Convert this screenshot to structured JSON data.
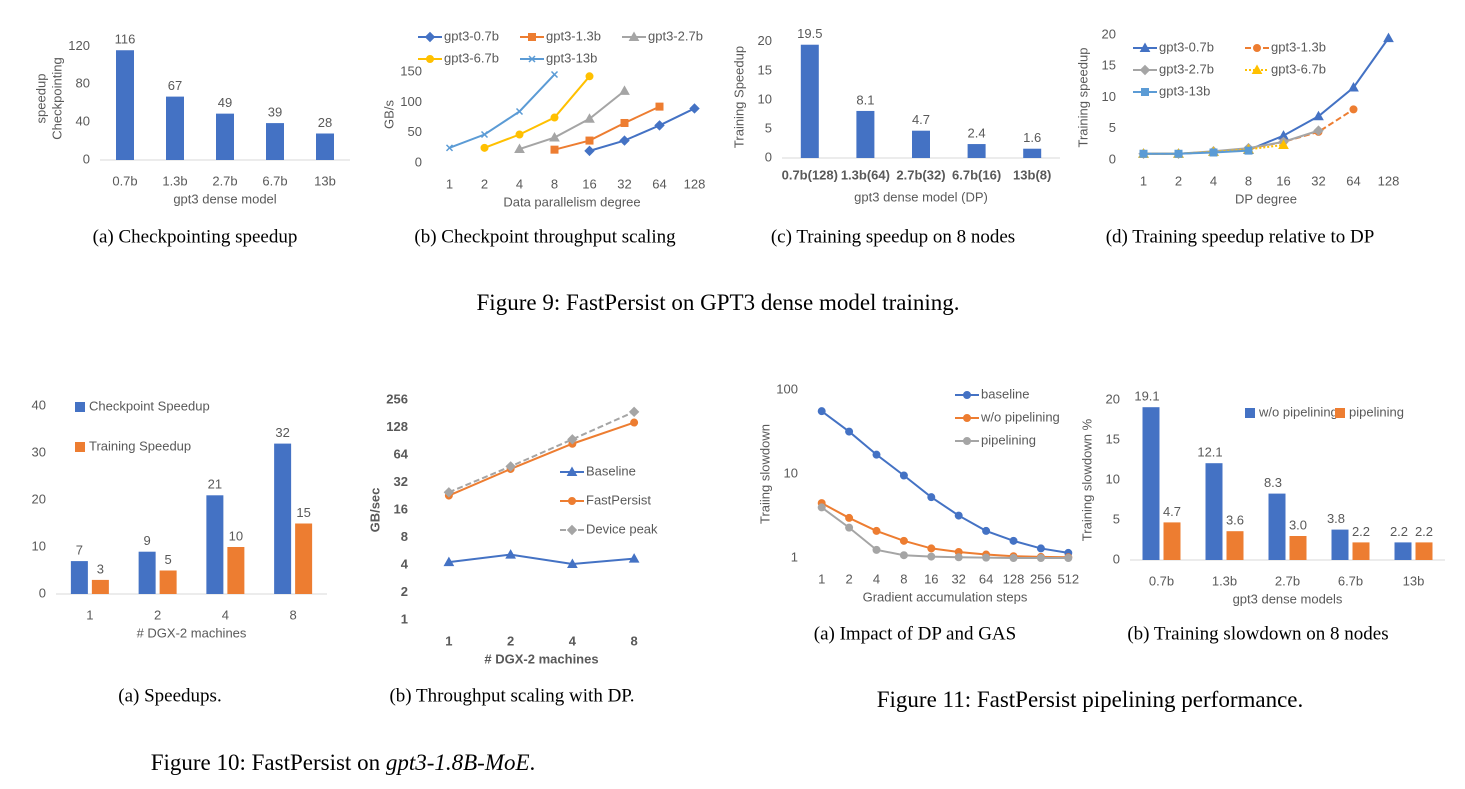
{
  "figures": [
    {
      "caption": [
        "Figure 9: FastPersist on GPT3 dense model training."
      ]
    },
    {
      "caption": [
        "Figure 10: FastPersist on ",
        "gpt3-1.8B-MoE",
        "."
      ]
    },
    {
      "caption": [
        "Figure 11: FastPersist pipelining performance."
      ]
    }
  ],
  "chart_data": [
    {
      "type": "bar",
      "caption": "(a)  Checkpointing speedup",
      "ylabel": [
        "Checkpointing",
        "speedup"
      ],
      "xlabel": "gpt3 dense model",
      "categories": [
        "0.7b",
        "1.3b",
        "2.7b",
        "6.7b",
        "13b"
      ],
      "series": [
        {
          "name": null,
          "color": "#4472c4",
          "values": [
            116,
            67,
            49,
            39,
            28
          ]
        }
      ],
      "ylim": [
        0,
        130
      ],
      "yticks": [
        0,
        40,
        80,
        120
      ],
      "grid": false
    },
    {
      "type": "line",
      "caption": "(b)  Checkpoint throughput scaling",
      "ylabel": "GB/s",
      "xlabel": "Data parallelism degree",
      "categories": [
        "1",
        "2",
        "4",
        "8",
        "16",
        "32",
        "64",
        "128"
      ],
      "legend": "top",
      "series": [
        {
          "name": "gpt3-0.7b",
          "color": "#4472c4",
          "marker": "diamond",
          "values": [
            null,
            null,
            null,
            null,
            20,
            37,
            62,
            90
          ]
        },
        {
          "name": "gpt3-1.3b",
          "color": "#ed7d31",
          "marker": "square",
          "values": [
            null,
            null,
            null,
            22,
            37,
            66,
            93,
            null
          ]
        },
        {
          "name": "gpt3-2.7b",
          "color": "#a5a5a5",
          "marker": "triangle",
          "values": [
            null,
            null,
            23,
            42,
            73,
            119,
            null,
            null
          ]
        },
        {
          "name": "gpt3-6.7b",
          "color": "#ffc000",
          "marker": "circle",
          "values": [
            null,
            25,
            47,
            75,
            143,
            null,
            null,
            null
          ]
        },
        {
          "name": "gpt3-13b",
          "color": "#5b9bd5",
          "marker": "x",
          "values": [
            25,
            47,
            85,
            146,
            null,
            null,
            null,
            null
          ]
        }
      ],
      "ylim": [
        0,
        160
      ],
      "yticks": [
        0,
        50,
        100,
        150
      ],
      "grid": false
    },
    {
      "type": "bar",
      "caption": "(c)  Training speedup on 8 nodes",
      "ylabel": "Training Speedup",
      "xlabel": "gpt3 dense model (DP)",
      "categories": [
        "0.7b(128)",
        "1.3b(64)",
        "2.7b(32)",
        "6.7b(16)",
        "13b(8)"
      ],
      "series": [
        {
          "name": null,
          "color": "#4472c4",
          "values": [
            19.5,
            8.1,
            4.7,
            2.4,
            1.6
          ]
        }
      ],
      "ylim": [
        0,
        21
      ],
      "yticks": [
        0,
        5,
        10,
        15,
        20
      ],
      "grid": false
    },
    {
      "type": "line",
      "caption": "(d)  Training speedup relative to DP",
      "ylabel": "Training speedup",
      "xlabel": "DP degree",
      "categories": [
        "1",
        "2",
        "4",
        "8",
        "16",
        "32",
        "64",
        "128"
      ],
      "legend": "upper left",
      "series": [
        {
          "name": "gpt3-0.7b",
          "color": "#4472c4",
          "marker": "triangle",
          "values": [
            1.0,
            1.0,
            1.3,
            1.6,
            3.9,
            7.0,
            11.6,
            19.5
          ]
        },
        {
          "name": "gpt3-1.3b",
          "color": "#ed7d31",
          "marker": "circle",
          "line_style": "dashed",
          "values": [
            1.0,
            1.0,
            1.3,
            1.8,
            2.9,
            4.5,
            8.1,
            null
          ]
        },
        {
          "name": "gpt3-2.7b",
          "color": "#a5a5a5",
          "marker": "diamond",
          "values": [
            1.0,
            1.0,
            1.4,
            1.9,
            2.9,
            4.7,
            null,
            null
          ]
        },
        {
          "name": "gpt3-6.7b",
          "color": "#ffc000",
          "marker": "triangle",
          "line_style": "dotted",
          "values": [
            1.0,
            1.0,
            1.3,
            1.7,
            2.4,
            null,
            null,
            null
          ]
        },
        {
          "name": "gpt3-13b",
          "color": "#5b9bd5",
          "marker": "square",
          "values": [
            1.0,
            1.0,
            1.2,
            1.5,
            null,
            null,
            null,
            null
          ]
        }
      ],
      "ylim": [
        0,
        20
      ],
      "yticks": [
        0,
        5,
        10,
        15,
        20
      ],
      "grid": false
    },
    {
      "type": "bar",
      "caption": "(a)  Speedups.",
      "xlabel": "# DGX-2 machines",
      "categories": [
        "1",
        "2",
        "4",
        "8"
      ],
      "legend": "upper left",
      "series": [
        {
          "name": "Checkpoint Speedup",
          "color": "#4472c4",
          "values": [
            7,
            9,
            21,
            32
          ]
        },
        {
          "name": "Training Speedup",
          "color": "#ed7d31",
          "values": [
            3,
            5,
            10,
            15
          ]
        }
      ],
      "ylim": [
        0,
        40
      ],
      "yticks": [
        0,
        10,
        20,
        30,
        40
      ],
      "grid": false
    },
    {
      "type": "line",
      "caption": "(b)  Throughput scaling with DP.",
      "ylabel": "GB/sec",
      "xlabel": "# DGX-2 machines",
      "categories": [
        "1",
        "2",
        "4",
        "8"
      ],
      "log_y": true,
      "legend": "center right",
      "series": [
        {
          "name": "Baseline",
          "color": "#4472c4",
          "marker": "triangle",
          "values": [
            4.3,
            5.2,
            4.1,
            4.7
          ]
        },
        {
          "name": "FastPersist",
          "color": "#ed7d31",
          "marker": "circle",
          "values": [
            23,
            45,
            85,
            145
          ]
        },
        {
          "name": "Device peak",
          "color": "#a5a5a5",
          "marker": "diamond",
          "line_style": "dashed",
          "values": [
            25,
            48,
            95,
            190
          ]
        }
      ],
      "ylim": [
        1,
        256
      ],
      "yticks": [
        1,
        2,
        4,
        8,
        16,
        32,
        64,
        128,
        256
      ],
      "grid": false
    },
    {
      "type": "line",
      "caption": "(a)  Impact of DP and GAS",
      "ylabel": "Traiing slowdown",
      "xlabel": "Gradient accumulation steps",
      "categories": [
        "1",
        "2",
        "4",
        "8",
        "16",
        "32",
        "64",
        "128",
        "256",
        "512"
      ],
      "log_y": true,
      "legend": "upper right",
      "series": [
        {
          "name": "baseline",
          "color": "#4472c4",
          "marker": "circle",
          "values": [
            56,
            32,
            17,
            9.6,
            5.3,
            3.2,
            2.1,
            1.6,
            1.3,
            1.15
          ]
        },
        {
          "name": "w/o pipelining",
          "color": "#ed7d31",
          "marker": "circle",
          "values": [
            4.5,
            3.0,
            2.1,
            1.6,
            1.3,
            1.18,
            1.1,
            1.05,
            1.03,
            1.02
          ]
        },
        {
          "name": "pipelining",
          "color": "#a5a5a5",
          "marker": "circle",
          "values": [
            4.0,
            2.3,
            1.25,
            1.08,
            1.04,
            1.02,
            1.01,
            1.0,
            1.0,
            1.0
          ]
        }
      ],
      "ylim": [
        1,
        100
      ],
      "yticks": [
        1,
        10,
        100
      ],
      "grid": false
    },
    {
      "type": "bar",
      "caption": "(b)  Training slowdown on 8 nodes",
      "ylabel": "Training slowdown %",
      "xlabel": "gpt3 dense models",
      "categories": [
        "0.7b",
        "1.3b",
        "2.7b",
        "6.7b",
        "13b"
      ],
      "legend": "upper right",
      "series": [
        {
          "name": "w/o pipelining",
          "color": "#4472c4",
          "values": [
            19.1,
            12.1,
            8.3,
            3.8,
            2.2
          ],
          "value_labels": [
            "19.1",
            "12.1",
            "8.3",
            "3.8",
            "2.2"
          ]
        },
        {
          "name": "pipelining",
          "color": "#ed7d31",
          "values": [
            4.7,
            3.6,
            3.0,
            2.2,
            2.2
          ],
          "value_labels": [
            "4.7",
            "3.6",
            "3.0",
            "2.2",
            "2.2"
          ]
        }
      ],
      "ylim": [
        0,
        20
      ],
      "yticks": [
        0,
        5,
        10,
        15,
        20
      ],
      "grid": false
    }
  ]
}
